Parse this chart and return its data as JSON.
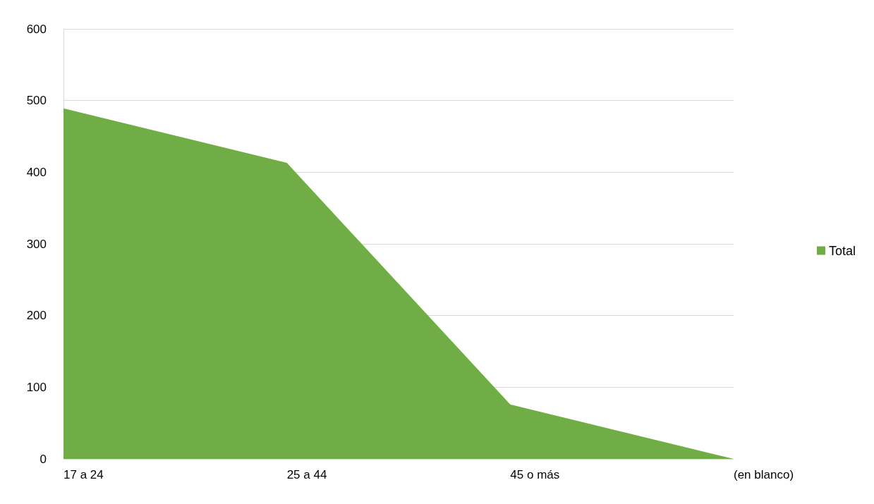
{
  "chart_data": {
    "type": "area",
    "categories": [
      "17 a 24",
      "25 a 44",
      "45 o más",
      "(en blanco)"
    ],
    "series": [
      {
        "name": "Total",
        "color": "#70ad47",
        "values": [
          489,
          413,
          76,
          0
        ]
      }
    ],
    "ylim": [
      0,
      600
    ],
    "yticks": [
      0,
      100,
      200,
      300,
      400,
      500,
      600
    ],
    "grid": "y",
    "legend": "right"
  }
}
